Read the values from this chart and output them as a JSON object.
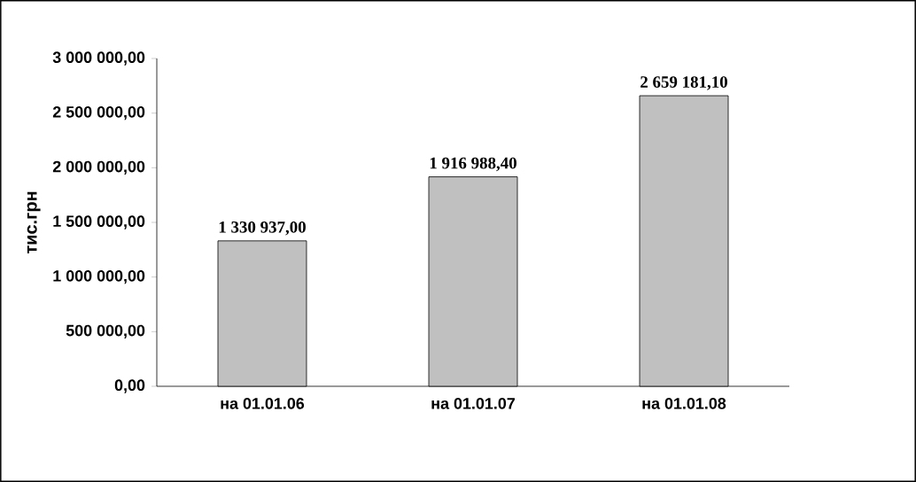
{
  "chart_data": {
    "type": "bar",
    "ylabel": "тис.грн",
    "categories": [
      "на 01.01.06",
      "на 01.01.07",
      "на 01.01.08"
    ],
    "values": [
      1330937.0,
      1916988.4,
      2659181.1
    ],
    "value_labels": [
      "1 330 937,00",
      "1 916 988,40",
      "2 659 181,10"
    ],
    "color": "#c0c0c0",
    "ylim": [
      0,
      3000000
    ],
    "yticks": [
      {
        "value": 0,
        "label": "0,00"
      },
      {
        "value": 500000,
        "label": "500 000,00"
      },
      {
        "value": 1000000,
        "label": "1 000 000,00"
      },
      {
        "value": 1500000,
        "label": "1 500 000,00"
      },
      {
        "value": 2000000,
        "label": "2 000 000,00"
      },
      {
        "value": 2500000,
        "label": "2 500 000,00"
      },
      {
        "value": 3000000,
        "label": "3 000 000,00"
      }
    ],
    "grid": false
  }
}
